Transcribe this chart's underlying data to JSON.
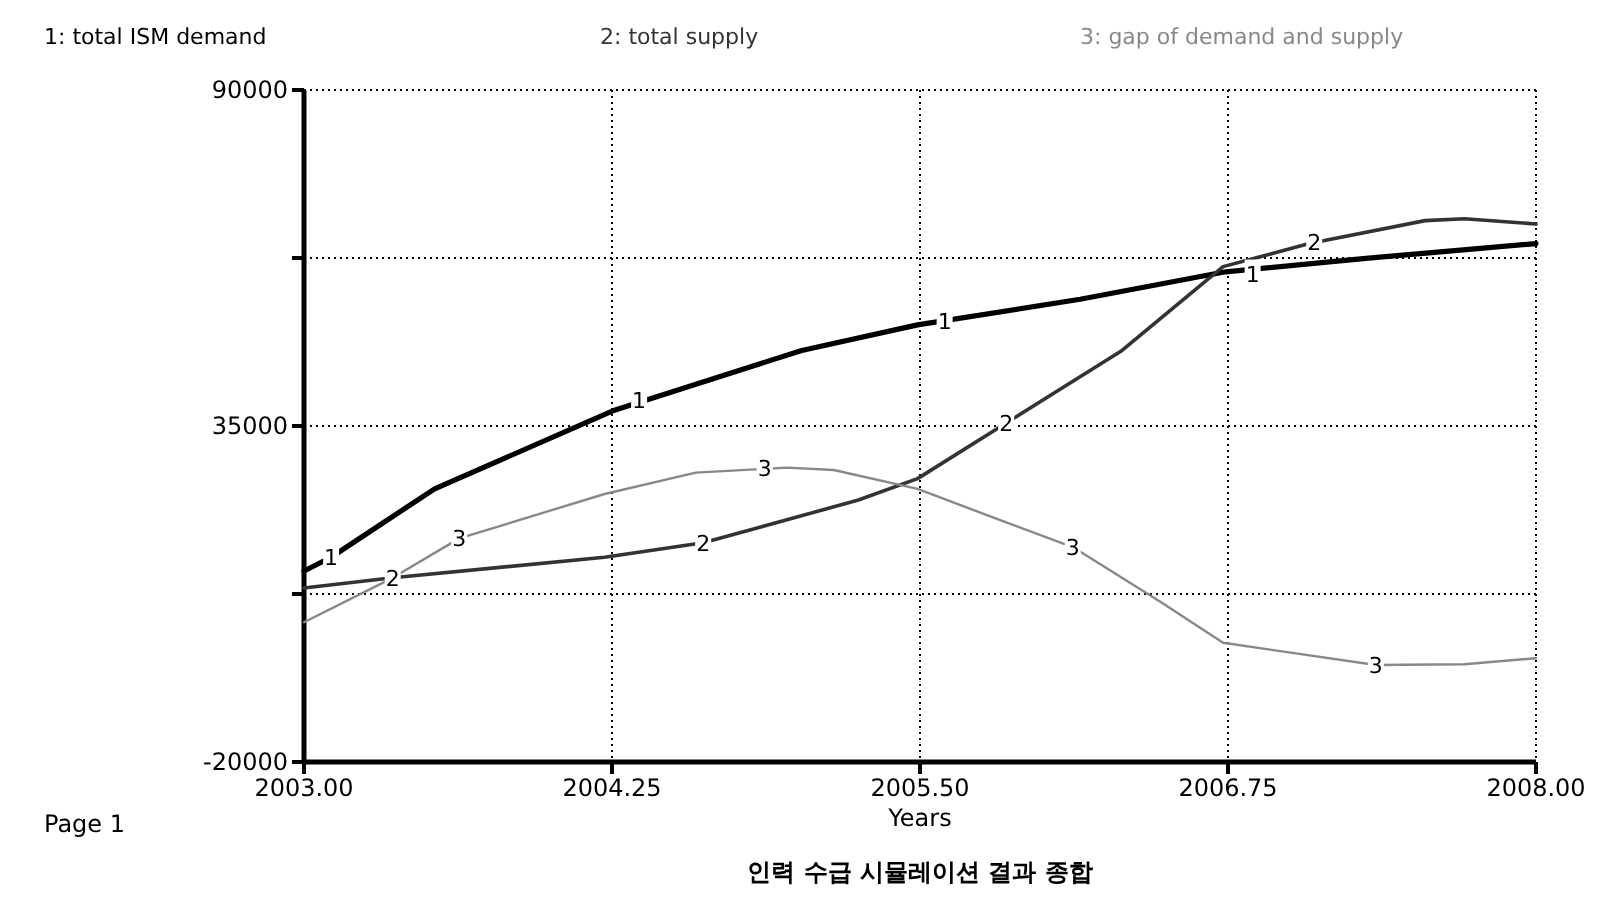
{
  "chart_data": {
    "type": "line",
    "title": "인력 수급 시뮬레이션 결과 종합",
    "xlabel": "Years",
    "xlim": [
      2003,
      2008
    ],
    "ylim": [
      -20000,
      90000
    ],
    "xticks": [
      {
        "value": 2003,
        "label": "2003.00"
      },
      {
        "value": 2004.25,
        "label": "2004.25"
      },
      {
        "value": 2005.5,
        "label": "2005.50"
      },
      {
        "value": 2006.75,
        "label": "2006.75"
      },
      {
        "value": 2008,
        "label": "2008.00"
      }
    ],
    "yticks": [
      -20000,
      {
        "value": 7500,
        "label": null
      },
      35000,
      {
        "value": 62500,
        "label": null
      },
      90000
    ],
    "grid": true,
    "legend": "top",
    "line_style": "solid",
    "marker": "none",
    "series": [
      {
        "name": "1: total ISM  demand",
        "color": "#000000",
        "x": [
          2003.0,
          2003.11,
          2003.53,
          2004.26,
          2005.02,
          2005.49,
          2006.15,
          2006.74,
          2007.32,
          2008.0
        ],
        "values": [
          11260,
          13520,
          24720,
          37580,
          47370,
          51560,
          55750,
          60240,
          62470,
          64860
        ]
      },
      {
        "name": "2: total supply",
        "color": "#333333",
        "x": [
          2003.0,
          2003.36,
          2004.22,
          2004.62,
          2005.25,
          2005.49,
          2005.85,
          2006.32,
          2006.73,
          2007.08,
          2007.55,
          2007.71,
          2008.0
        ],
        "values": [
          8480,
          10150,
          13520,
          15880,
          22880,
          26390,
          35490,
          47370,
          61090,
          64860,
          68620,
          68920,
          68060
        ]
      },
      {
        "name": "3: gap of demand and supply",
        "color": "#888888",
        "x": [
          2003.0,
          2003.36,
          2003.63,
          2004.22,
          2004.59,
          2004.96,
          2005.15,
          2005.49,
          2005.82,
          2006.12,
          2006.48,
          2006.73,
          2007.35,
          2007.71,
          2008.0
        ],
        "values": [
          2880,
          10150,
          16600,
          23870,
          27370,
          28190,
          27790,
          24720,
          19670,
          15190,
          6100,
          -480,
          -4130,
          -4000,
          -3010
        ]
      }
    ],
    "annotations": [
      "Page 1",
      {
        "text": "1",
        "x": 2003.11,
        "y": 13520
      },
      {
        "text": "1",
        "x": 2004.36,
        "y": 39250
      },
      {
        "text": "1",
        "x": 2005.6,
        "y": 52250
      },
      {
        "text": "1",
        "x": 2006.85,
        "y": 59950
      },
      {
        "text": "2",
        "x": 2003.36,
        "y": 10150
      },
      {
        "text": "2",
        "x": 2004.62,
        "y": 15880
      },
      {
        "text": "2",
        "x": 2005.85,
        "y": 35490
      },
      {
        "text": "2",
        "x": 2007.1,
        "y": 65150
      },
      {
        "text": "3",
        "x": 2003.63,
        "y": 16600
      },
      {
        "text": "3",
        "x": 2004.87,
        "y": 28190
      },
      {
        "text": "3",
        "x": 2006.12,
        "y": 15190
      },
      {
        "text": "3",
        "x": 2007.35,
        "y": -4130
      }
    ]
  }
}
